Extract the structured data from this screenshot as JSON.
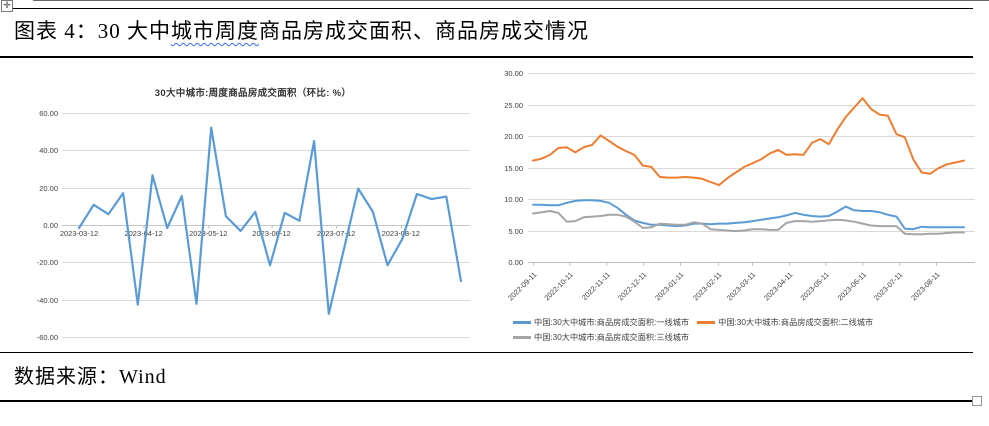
{
  "header": {
    "title_pre": "图表 4：30 大中",
    "title_wavy": "城市周度",
    "title_post": "商品房成交面积、商品房成交情况"
  },
  "footer": {
    "source_label": "数据来源：Wind"
  },
  "icons": {
    "table_move_handle": "✛"
  },
  "colors": {
    "line_blue": "#5B9BD5",
    "line_orange": "#ED7D31",
    "line_gray": "#A5A5A5",
    "grid": "#D9D9D9",
    "axis": "#BFBFBF",
    "axis_text": "#404040",
    "wavy_underline": "#3b6bf5"
  },
  "chart_data": [
    {
      "type": "line",
      "title": "30大中城市:周度商品房成交面积（环比: %）",
      "ylim": [
        -60,
        60
      ],
      "ytick_step": 20,
      "yticks": [
        "60.00",
        "40.00",
        "20.00",
        "0.00",
        "-20.00",
        "-40.00",
        "-60.00"
      ],
      "grid": true,
      "legend_position": "none",
      "series": [
        {
          "name": "30大中城市:周度商品房成交面积(环比:%)",
          "color": "#5B9BD5",
          "values": [
            -1.6,
            10.8,
            5.8,
            17.1,
            -42.7,
            26.7,
            -1.6,
            15.5,
            -42.2,
            52.2,
            4.7,
            -3.2,
            7.0,
            -21.6,
            6.5,
            2.3,
            45.0,
            -47.6,
            -13.9,
            19.5,
            7.2,
            -21.6,
            -7.6,
            16.6,
            13.9,
            15.2,
            -30.1
          ]
        }
      ],
      "xticks": [
        {
          "label": "2023-03-12",
          "at": 0
        },
        {
          "label": "2023-04-12",
          "at": 4.4
        },
        {
          "label": "2023-05-12",
          "at": 8.8
        },
        {
          "label": "2023-06-12",
          "at": 13.1
        },
        {
          "label": "2023-07-12",
          "at": 17.5
        },
        {
          "label": "2023-08-12",
          "at": 21.9
        }
      ]
    },
    {
      "type": "line",
      "title": "",
      "ylim": [
        0,
        30
      ],
      "ytick_step": 5,
      "yticks": [
        "30.00",
        "25.00",
        "20.00",
        "15.00",
        "10.00",
        "5.00",
        "0.00"
      ],
      "grid": true,
      "legend_position": "bottom",
      "series": [
        {
          "name": "中国:30大中城市:商品房成交面积:一线城市",
          "color": "#5B9BD5",
          "values": [
            9.1,
            9.1,
            9.0,
            9.0,
            9.4,
            9.7,
            9.8,
            9.8,
            9.7,
            9.4,
            8.6,
            7.5,
            6.6,
            6.2,
            5.9,
            5.9,
            5.8,
            5.7,
            5.8,
            6.1,
            6.1,
            6.0,
            6.1,
            6.1,
            6.2,
            6.3,
            6.5,
            6.7,
            6.9,
            7.1,
            7.4,
            7.8,
            7.5,
            7.3,
            7.2,
            7.3,
            8.0,
            8.8,
            8.2,
            8.1,
            8.1,
            7.9,
            7.5,
            7.2,
            5.3,
            5.2,
            5.6,
            5.5,
            5.5,
            5.5,
            5.5,
            5.5
          ]
        },
        {
          "name": "中国:30大中城市:商品房成交面积:二线城市",
          "color": "#ED7D31",
          "values": [
            16.1,
            16.4,
            17.0,
            18.1,
            18.2,
            17.4,
            18.2,
            18.6,
            20.1,
            19.2,
            18.3,
            17.6,
            17.0,
            15.3,
            15.1,
            13.5,
            13.4,
            13.4,
            13.5,
            13.4,
            13.2,
            12.7,
            12.2,
            13.3,
            14.2,
            15.1,
            15.7,
            16.3,
            17.2,
            17.8,
            17.0,
            17.1,
            17.0,
            18.9,
            19.5,
            18.7,
            21.0,
            23.0,
            24.5,
            26.0,
            24.3,
            23.4,
            23.2,
            20.3,
            19.8,
            16.3,
            14.2,
            14.0,
            14.9,
            15.5,
            15.8,
            16.1
          ]
        },
        {
          "name": "中国:30大中城市:商品房成交面积:三线城市",
          "color": "#A5A5A5",
          "values": [
            7.7,
            7.9,
            8.1,
            7.8,
            6.4,
            6.5,
            7.1,
            7.2,
            7.3,
            7.5,
            7.5,
            7.2,
            6.4,
            5.4,
            5.5,
            6.1,
            6.0,
            5.9,
            5.9,
            6.3,
            6.1,
            5.2,
            5.1,
            5.0,
            4.9,
            5.0,
            5.2,
            5.2,
            5.1,
            5.1,
            6.2,
            6.5,
            6.5,
            6.4,
            6.5,
            6.6,
            6.7,
            6.6,
            6.4,
            6.1,
            5.8,
            5.7,
            5.7,
            5.7,
            4.5,
            4.4,
            4.4,
            4.5,
            4.5,
            4.6,
            4.7,
            4.7
          ]
        }
      ],
      "xticks": [
        {
          "label": "2022-09-11",
          "at": 0
        },
        {
          "label": "2022-10-11",
          "at": 4.3
        },
        {
          "label": "2022-11-11",
          "at": 8.7
        },
        {
          "label": "2022-12-11",
          "at": 13.0
        },
        {
          "label": "2023-01-11",
          "at": 17.4
        },
        {
          "label": "2023-02-11",
          "at": 21.9
        },
        {
          "label": "2023-03-11",
          "at": 25.9
        },
        {
          "label": "2023-04-11",
          "at": 30.3
        },
        {
          "label": "2023-05-11",
          "at": 34.6
        },
        {
          "label": "2023-06-11",
          "at": 39.0
        },
        {
          "label": "2023-07-11",
          "at": 43.3
        },
        {
          "label": "2023-08-11",
          "at": 47.7
        }
      ]
    }
  ]
}
